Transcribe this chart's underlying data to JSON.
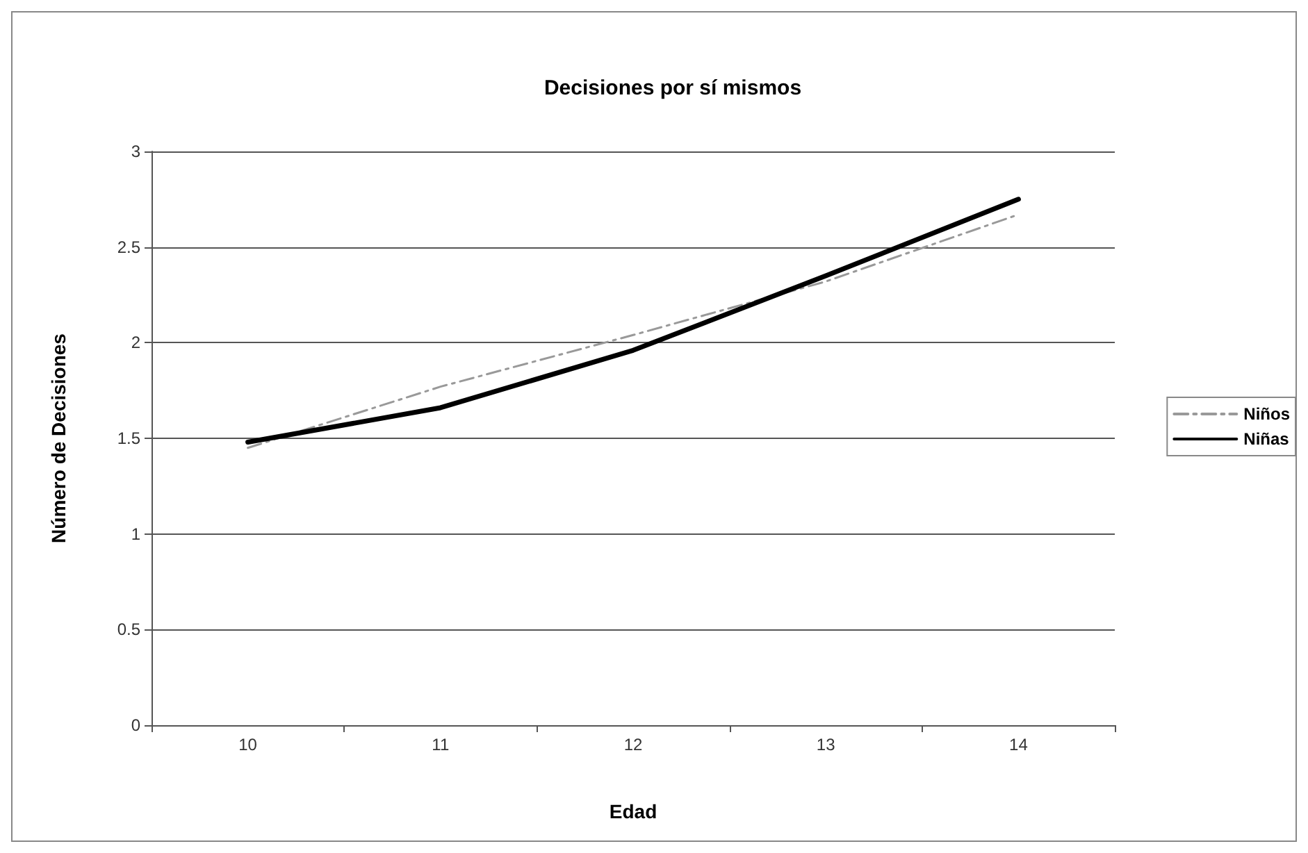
{
  "chart_data": {
    "type": "line",
    "title": "Decisiones por sí mismos",
    "xlabel": "Edad",
    "ylabel": "Número de Decisiones",
    "categories": [
      "10",
      "11",
      "12",
      "13",
      "14"
    ],
    "series": [
      {
        "name": "Niños",
        "color": "#999999",
        "line_style": "dashed",
        "values": [
          1.45,
          1.77,
          2.04,
          2.32,
          2.67
        ]
      },
      {
        "name": "Niñas",
        "color": "#000000",
        "line_style": "solid",
        "values": [
          1.48,
          1.66,
          1.96,
          2.35,
          2.75
        ]
      }
    ],
    "ylim": [
      0,
      3
    ],
    "yticks": [
      0,
      0.5,
      1,
      1.5,
      2,
      2.5,
      3
    ],
    "grid": "y",
    "legend": "right",
    "marker": "none"
  }
}
